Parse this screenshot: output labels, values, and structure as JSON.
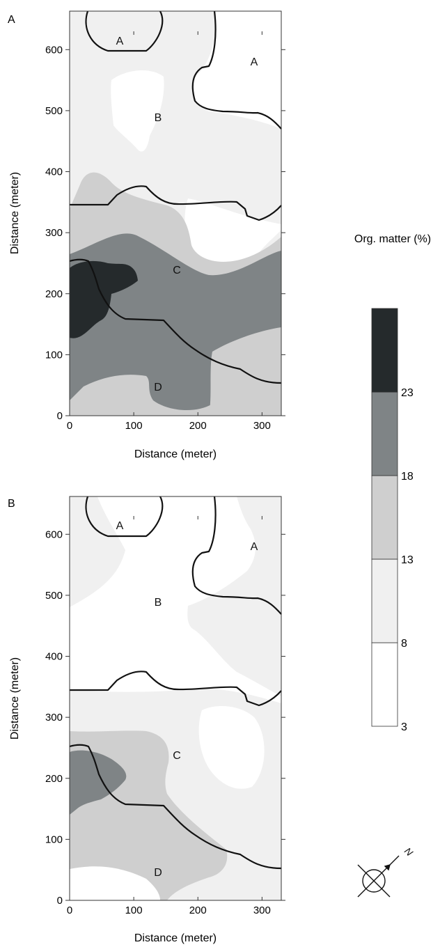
{
  "chart_data": [
    {
      "type": "heatmap",
      "panel_label": "A",
      "xlabel": "Distance (meter)",
      "ylabel": "Distance (meter)",
      "xlim": [
        0,
        330
      ],
      "ylim": [
        0,
        630
      ],
      "xticks": [
        "0",
        "100",
        "200",
        "300"
      ],
      "yticks": [
        "0",
        "100",
        "200",
        "300",
        "400",
        "500",
        "600"
      ],
      "zone_labels": [
        "A",
        "A",
        "B",
        "C",
        "D"
      ]
    },
    {
      "type": "heatmap",
      "panel_label": "B",
      "xlabel": "Distance (meter)",
      "ylabel": "Distance (meter)",
      "xlim": [
        0,
        330
      ],
      "ylim": [
        0,
        630
      ],
      "xticks": [
        "0",
        "100",
        "200",
        "300"
      ],
      "yticks": [
        "0",
        "100",
        "200",
        "300",
        "400",
        "500",
        "600"
      ],
      "zone_labels": [
        "A",
        "A",
        "B",
        "C",
        "D"
      ]
    }
  ],
  "legend": {
    "title": "Org. matter (%)",
    "breaks": [
      "3",
      "8",
      "13",
      "18",
      "23"
    ],
    "classes": [
      {
        "range": [
          3,
          8
        ],
        "color": "#ffffff"
      },
      {
        "range": [
          8,
          13
        ],
        "color": "#f0f0f0"
      },
      {
        "range": [
          13,
          18
        ],
        "color": "#cfcfcf"
      },
      {
        "range": [
          18,
          23
        ],
        "color": "#7f8486"
      },
      {
        "range": [
          23,
          28
        ],
        "color": "#252a2c"
      }
    ]
  },
  "north_arrow": {
    "label": "N"
  }
}
